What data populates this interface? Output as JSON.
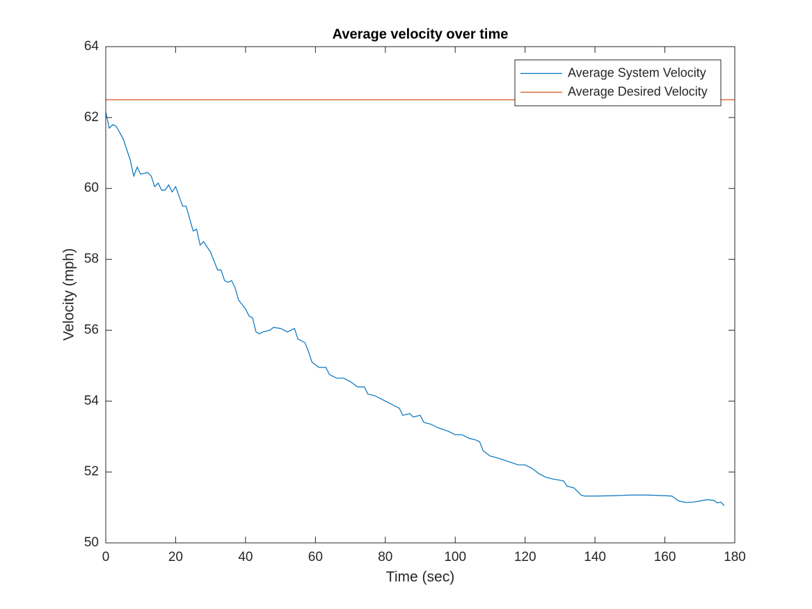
{
  "chart_data": {
    "type": "line",
    "title": "Average velocity over time",
    "xlabel": "Time (sec)",
    "ylabel": "Velocity (mph)",
    "xlim": [
      0,
      180
    ],
    "ylim": [
      50,
      64
    ],
    "xticks": [
      0,
      20,
      40,
      60,
      80,
      100,
      120,
      140,
      160,
      180
    ],
    "yticks": [
      50,
      52,
      54,
      56,
      58,
      60,
      62,
      64
    ],
    "grid": false,
    "legend": "northeast",
    "series": [
      {
        "name": "Average System Velocity",
        "color": "#0072BD",
        "x": [
          0,
          1,
          2,
          3,
          5,
          7,
          8,
          9,
          10,
          12,
          13,
          14,
          15,
          16,
          17,
          18,
          19,
          20,
          22,
          23,
          25,
          26,
          27,
          28,
          30,
          32,
          33,
          34,
          35,
          36,
          37,
          38,
          40,
          41,
          42,
          43,
          44,
          45,
          47,
          48,
          50,
          52,
          53,
          54,
          55,
          57,
          58,
          59,
          61,
          63,
          64,
          66,
          68,
          70,
          72,
          74,
          75,
          77,
          80,
          82,
          84,
          85,
          87,
          88,
          90,
          91,
          93,
          95,
          98,
          100,
          102,
          104,
          106,
          107,
          108,
          110,
          112,
          115,
          118,
          120,
          122,
          124,
          126,
          128,
          131,
          132,
          134,
          136,
          137,
          140,
          145,
          150,
          155,
          160,
          162,
          164,
          166,
          168,
          170,
          172,
          174,
          175,
          176,
          177
        ],
        "values": [
          62.15,
          61.7,
          61.8,
          61.75,
          61.4,
          60.8,
          60.35,
          60.6,
          60.4,
          60.45,
          60.35,
          60.05,
          60.15,
          59.95,
          59.95,
          60.1,
          59.9,
          60.05,
          59.5,
          59.5,
          58.8,
          58.85,
          58.4,
          58.5,
          58.2,
          57.7,
          57.7,
          57.4,
          57.35,
          57.4,
          57.2,
          56.85,
          56.6,
          56.4,
          56.35,
          55.95,
          55.9,
          55.95,
          56.0,
          56.08,
          56.05,
          55.95,
          56.0,
          56.05,
          55.75,
          55.65,
          55.4,
          55.1,
          54.95,
          54.95,
          54.75,
          54.65,
          54.65,
          54.55,
          54.4,
          54.4,
          54.2,
          54.15,
          54.0,
          53.9,
          53.8,
          53.6,
          53.65,
          53.55,
          53.6,
          53.4,
          53.35,
          53.25,
          53.15,
          53.05,
          53.05,
          52.95,
          52.9,
          52.85,
          52.6,
          52.45,
          52.4,
          52.3,
          52.2,
          52.2,
          52.1,
          51.95,
          51.85,
          51.8,
          51.75,
          51.6,
          51.55,
          51.35,
          51.32,
          51.32,
          51.33,
          51.35,
          51.35,
          51.33,
          51.32,
          51.18,
          51.14,
          51.15,
          51.18,
          51.22,
          51.2,
          51.13,
          51.15,
          51.05
        ]
      },
      {
        "name": "Average Desired Velocity",
        "color": "#D95319",
        "x": [
          0,
          180
        ],
        "values": [
          62.5,
          62.5
        ]
      }
    ]
  }
}
